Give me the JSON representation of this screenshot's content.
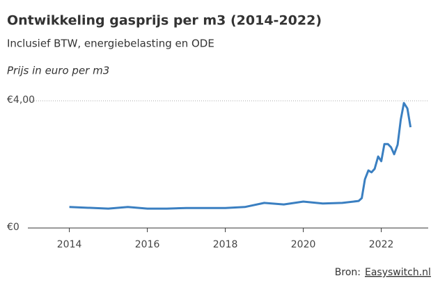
{
  "chart_data": {
    "type": "line",
    "title": "Ontwikkeling gasprijs per m3 (2014-2022)",
    "subtitle": "Inclusief BTW, energiebelasting en ODE",
    "y_label": "Prijs in euro per m3",
    "source_label": "Bron:",
    "source_link": "Easyswitch.nl",
    "x": [
      2014.0,
      2015.0,
      2015.5,
      2016.0,
      2016.5,
      2017.0,
      2018.0,
      2018.5,
      2019.0,
      2019.5,
      2020.0,
      2020.5,
      2021.0,
      2021.42,
      2021.5,
      2021.58,
      2021.67,
      2021.75,
      2021.83,
      2021.92,
      2022.0,
      2022.08,
      2022.17,
      2022.25,
      2022.33,
      2022.42,
      2022.5,
      2022.58,
      2022.67,
      2022.75
    ],
    "series": [
      {
        "name": "Gasprijs",
        "color": "#3a7fc1",
        "values": [
          0.66,
          0.61,
          0.66,
          0.61,
          0.61,
          0.63,
          0.63,
          0.66,
          0.79,
          0.74,
          0.83,
          0.77,
          0.79,
          0.85,
          0.94,
          1.53,
          1.81,
          1.75,
          1.86,
          2.25,
          2.1,
          2.64,
          2.64,
          2.54,
          2.32,
          2.62,
          3.41,
          3.93,
          3.76,
          3.17
        ]
      }
    ],
    "xlim": [
      2013.4,
      2023.4
    ],
    "xticks": [
      2014,
      2016,
      2018,
      2020,
      2022
    ],
    "ylim": [
      0,
      4
    ],
    "yticks": [
      {
        "value": 0,
        "label": "€0"
      },
      {
        "value": 4,
        "label": "€4,00"
      }
    ],
    "grid": true
  }
}
